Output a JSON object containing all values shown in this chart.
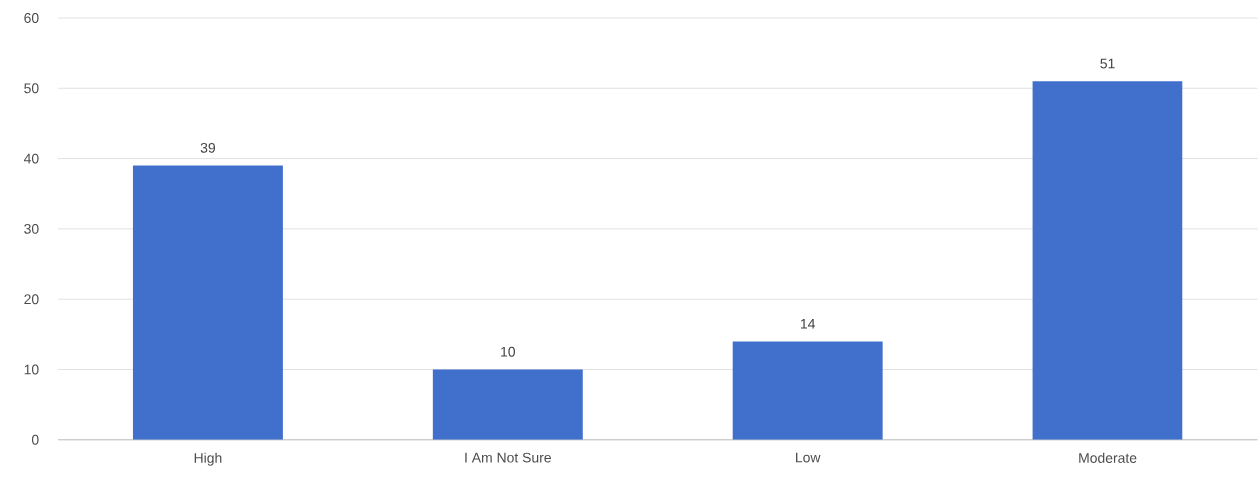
{
  "chart_data": {
    "type": "bar",
    "categories": [
      "High",
      "I Am Not Sure",
      "Low",
      "Moderate"
    ],
    "values": [
      39,
      10,
      14,
      51
    ],
    "color": "#4170cc",
    "ylim": [
      0,
      60
    ],
    "yticks": [
      0,
      10,
      20,
      30,
      40,
      50,
      60
    ],
    "grid": "y",
    "data_labels": true
  }
}
